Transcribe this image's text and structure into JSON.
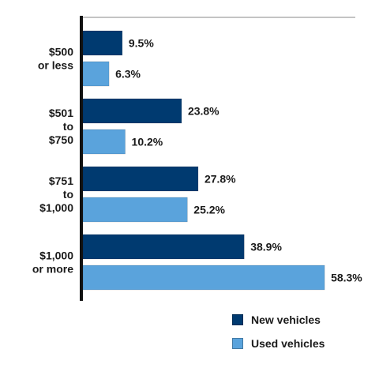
{
  "chart_data": {
    "type": "bar",
    "orientation": "horizontal",
    "title": "",
    "xlabel": "",
    "ylabel": "",
    "categories": [
      [
        "$500",
        "or less"
      ],
      [
        "$501",
        "to",
        "$750"
      ],
      [
        "$751",
        "to",
        "$1,000"
      ],
      [
        "$1,000",
        "or more"
      ]
    ],
    "series": [
      {
        "name": "New vehicles",
        "color": "#003a70",
        "values": [
          9.5,
          23.8,
          27.8,
          38.9
        ],
        "labels": [
          "9.5%",
          "23.8%",
          "27.8%",
          "38.9%"
        ]
      },
      {
        "name": "Used vehicles",
        "color": "#5aa3dc",
        "values": [
          6.3,
          10.2,
          25.2,
          58.3
        ],
        "labels": [
          "6.3%",
          "10.2%",
          "25.2%",
          "58.3%"
        ]
      }
    ],
    "xlim": [
      0,
      60
    ],
    "grid": false,
    "legend_position": "bottom-right"
  }
}
